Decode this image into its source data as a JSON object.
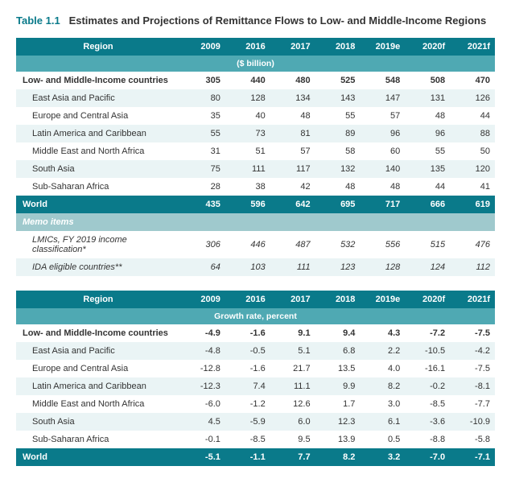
{
  "title_prefix": "Table 1.1",
  "title_rest": "Estimates and Projections of Remittance Flows to Low- and Middle-Income Regions",
  "columns": [
    "Region",
    "2009",
    "2016",
    "2017",
    "2018",
    "2019e",
    "2020f",
    "2021f"
  ],
  "table1": {
    "unit": "($ billion)",
    "rows": [
      {
        "label": "Low- and Middle-Income countries",
        "vals": [
          "305",
          "440",
          "480",
          "525",
          "548",
          "508",
          "470"
        ],
        "bold": true,
        "indent": false
      },
      {
        "label": "East Asia and Pacific",
        "vals": [
          "80",
          "128",
          "134",
          "143",
          "147",
          "131",
          "126"
        ],
        "bold": false,
        "indent": true
      },
      {
        "label": "Europe and Central Asia",
        "vals": [
          "35",
          "40",
          "48",
          "55",
          "57",
          "48",
          "44"
        ],
        "bold": false,
        "indent": true
      },
      {
        "label": "Latin America and Caribbean",
        "vals": [
          "55",
          "73",
          "81",
          "89",
          "96",
          "96",
          "88"
        ],
        "bold": false,
        "indent": true
      },
      {
        "label": "Middle East and North Africa",
        "vals": [
          "31",
          "51",
          "57",
          "58",
          "60",
          "55",
          "50"
        ],
        "bold": false,
        "indent": true
      },
      {
        "label": "South Asia",
        "vals": [
          "75",
          "111",
          "117",
          "132",
          "140",
          "135",
          "120"
        ],
        "bold": false,
        "indent": true
      },
      {
        "label": "Sub-Saharan Africa",
        "vals": [
          "28",
          "38",
          "42",
          "48",
          "48",
          "44",
          "41"
        ],
        "bold": false,
        "indent": true
      }
    ],
    "world": {
      "label": "World",
      "vals": [
        "435",
        "596",
        "642",
        "695",
        "717",
        "666",
        "619"
      ]
    },
    "memo_label": "Memo items",
    "memo_rows": [
      {
        "label": "LMICs, FY 2019 income classification*",
        "vals": [
          "306",
          "446",
          "487",
          "532",
          "556",
          "515",
          "476"
        ]
      },
      {
        "label": "IDA eligible countries**",
        "vals": [
          "64",
          "103",
          "111",
          "123",
          "128",
          "124",
          "112"
        ]
      }
    ]
  },
  "table2": {
    "unit": "Growth rate, percent",
    "rows": [
      {
        "label": "Low- and Middle-Income countries",
        "vals": [
          "-4.9",
          "-1.6",
          "9.1",
          "9.4",
          "4.3",
          "-7.2",
          "-7.5"
        ],
        "bold": true,
        "indent": false
      },
      {
        "label": "East Asia and Pacific",
        "vals": [
          "-4.8",
          "-0.5",
          "5.1",
          "6.8",
          "2.2",
          "-10.5",
          "-4.2"
        ],
        "bold": false,
        "indent": true
      },
      {
        "label": "Europe and Central Asia",
        "vals": [
          "-12.8",
          "-1.6",
          "21.7",
          "13.5",
          "4.0",
          "-16.1",
          "-7.5"
        ],
        "bold": false,
        "indent": true
      },
      {
        "label": "Latin America and Caribbean",
        "vals": [
          "-12.3",
          "7.4",
          "11.1",
          "9.9",
          "8.2",
          "-0.2",
          "-8.1"
        ],
        "bold": false,
        "indent": true
      },
      {
        "label": "Middle East and North Africa",
        "vals": [
          "-6.0",
          "-1.2",
          "12.6",
          "1.7",
          "3.0",
          "-8.5",
          "-7.7"
        ],
        "bold": false,
        "indent": true
      },
      {
        "label": "South Asia",
        "vals": [
          "4.5",
          "-5.9",
          "6.0",
          "12.3",
          "6.1",
          "-3.6",
          "-10.9"
        ],
        "bold": false,
        "indent": true
      },
      {
        "label": "Sub-Saharan Africa",
        "vals": [
          "-0.1",
          "-8.5",
          "9.5",
          "13.9",
          "0.5",
          "-8.8",
          "-5.8"
        ],
        "bold": false,
        "indent": true
      }
    ],
    "world": {
      "label": "World",
      "vals": [
        "-5.1",
        "-1.1",
        "7.7",
        "8.2",
        "3.2",
        "-7.0",
        "-7.1"
      ]
    }
  }
}
